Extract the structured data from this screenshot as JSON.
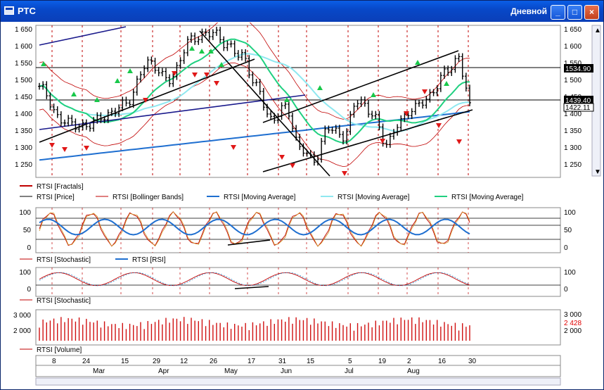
{
  "window": {
    "title": "РТС",
    "mode": "Дневной",
    "buttons": {
      "minimize": "_",
      "maximize": "□",
      "close": "×"
    }
  },
  "price_panel": {
    "y_ticks": [
      "1 650",
      "1 600",
      "1 550",
      "1 500",
      "1 450",
      "1 400",
      "1 350",
      "1 300",
      "1 250"
    ],
    "right_ticks": [
      "1 650",
      "1 600",
      "1 550",
      "1 500",
      "1 450",
      "1 400",
      "1 350",
      "1 300",
      "1 250"
    ],
    "right_tags": {
      "upper": "1534.90",
      "lower": "1439.40",
      "close": "1422.11"
    },
    "legend": [
      {
        "label": "RTSI [Fractals]",
        "color": "#c00000"
      },
      {
        "label": "RTSI [Price]",
        "color": "#000000"
      },
      {
        "label": "RTSI [Bollinger Bands]",
        "color": "#c00000"
      },
      {
        "label": "RTSI [Moving Average]",
        "color": "#1f6fd0"
      },
      {
        "label": "RTSI [Moving Average]",
        "color": "#8fe8f0"
      },
      {
        "label": "RTSI [Moving Average]",
        "color": "#20d080"
      }
    ]
  },
  "osc_panel_1": {
    "y_ticks": [
      "100",
      "50",
      "0"
    ],
    "right_ticks": [
      "100",
      "50",
      "0"
    ],
    "legend": [
      {
        "label": "RTSI [Stochastic]",
        "color": "#c00000"
      },
      {
        "label": "RTSI [RSI]",
        "color": "#1f6fd0"
      }
    ]
  },
  "osc_panel_2": {
    "y_ticks": [
      "100",
      "0"
    ],
    "right_ticks": [
      "100",
      "0"
    ],
    "legend": [
      {
        "label": "RTSI [Stochastic]",
        "color": "#c00000"
      }
    ]
  },
  "volume_panel": {
    "y_ticks": [
      "3 000",
      "2 000"
    ],
    "right_ticks": [
      "3 000",
      "2 000"
    ],
    "right_tag": "2 428",
    "legend": [
      {
        "label": "RTSI [Volume]",
        "color": "#c00000"
      }
    ]
  },
  "time_axis": {
    "days": [
      "8",
      "24",
      "15",
      "29",
      "12",
      "26",
      "17",
      "31",
      "15",
      "5",
      "19",
      "2",
      "16",
      "30"
    ],
    "months": [
      "Mar",
      "Apr",
      "May",
      "Jun",
      "Jul",
      "Aug"
    ]
  }
}
